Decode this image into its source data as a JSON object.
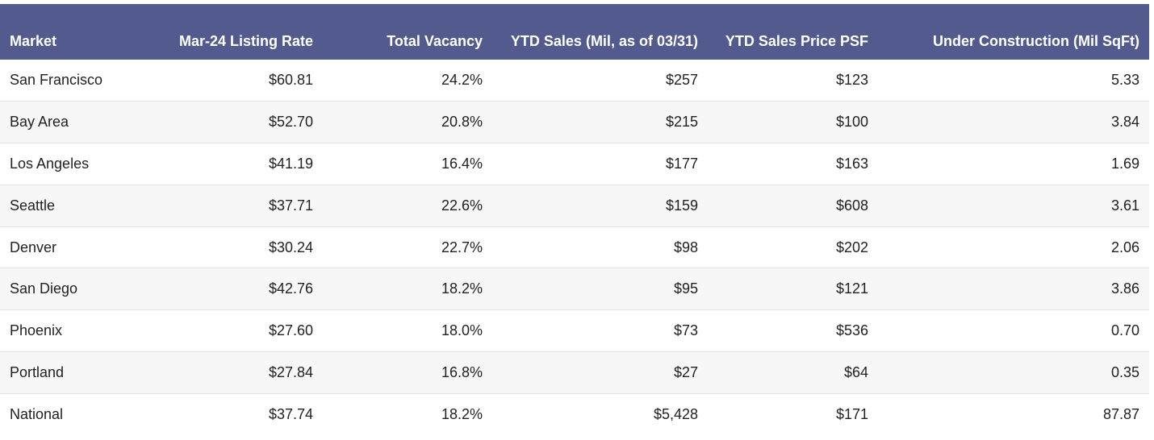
{
  "table": {
    "columns": [
      "Market",
      "Mar-24 Listing Rate",
      "Total Vacancy",
      "YTD Sales (Mil, as of 03/31)",
      "YTD Sales Price PSF",
      "Under Construction (Mil SqFt)"
    ],
    "rows": [
      [
        "San Francisco",
        "$60.81",
        "24.2%",
        "$257",
        "$123",
        "5.33"
      ],
      [
        "Bay Area",
        "$52.70",
        "20.8%",
        "$215",
        "$100",
        "3.84"
      ],
      [
        "Los Angeles",
        "$41.19",
        "16.4%",
        "$177",
        "$163",
        "1.69"
      ],
      [
        "Seattle",
        "$37.71",
        "22.6%",
        "$159",
        "$608",
        "3.61"
      ],
      [
        "Denver",
        "$30.24",
        "22.7%",
        "$98",
        "$202",
        "2.06"
      ],
      [
        "San Diego",
        "$42.76",
        "18.2%",
        "$95",
        "$121",
        "3.86"
      ],
      [
        "Phoenix",
        "$27.60",
        "18.0%",
        "$73",
        "$536",
        "0.70"
      ],
      [
        "Portland",
        "$27.84",
        "16.8%",
        "$27",
        "$64",
        "0.35"
      ],
      [
        "National",
        "$37.74",
        "18.2%",
        "$5,428",
        "$171",
        "87.87"
      ]
    ]
  }
}
